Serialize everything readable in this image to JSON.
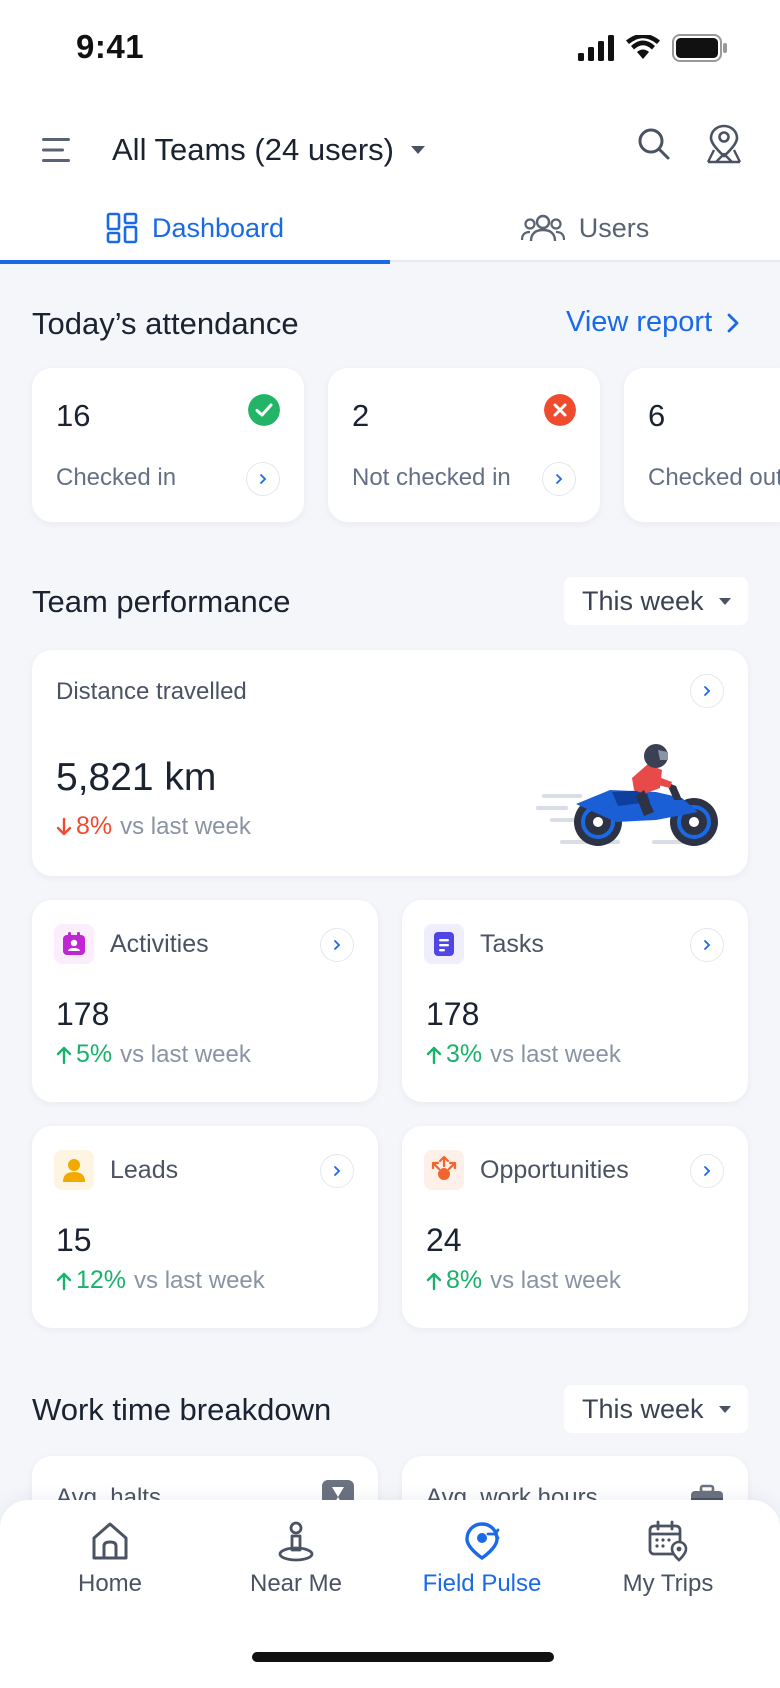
{
  "status_bar": {
    "time": "9:41"
  },
  "header": {
    "team_title": "All Teams (24 users)",
    "tabs": [
      {
        "label": "Dashboard",
        "icon": "dashboard-grid-icon",
        "active": true
      },
      {
        "label": "Users",
        "icon": "users-icon",
        "active": false
      }
    ]
  },
  "attendance": {
    "title": "Today’s attendance",
    "link": "View report",
    "cards": [
      {
        "value": "16",
        "label": "Checked in",
        "status": "check-circle-icon",
        "color": "#22b567"
      },
      {
        "value": "2",
        "label": "Not checked in",
        "status": "x-circle-icon",
        "color": "#ef4b2f"
      },
      {
        "value": "6",
        "label": "Checked out"
      }
    ]
  },
  "performance": {
    "title": "Team performance",
    "period": "This week",
    "distance": {
      "label": "Distance travelled",
      "value": "5,821 km",
      "change": "8%",
      "direction": "down",
      "compare": "vs last week"
    },
    "metrics": [
      {
        "label": "Activities",
        "value": "178",
        "change": "5%",
        "direction": "up",
        "compare": "vs last week",
        "icon": "activities-icon",
        "icon_color": "#c026d3"
      },
      {
        "label": "Tasks",
        "value": "178",
        "change": "3%",
        "direction": "up",
        "compare": "vs last week",
        "icon": "tasks-icon",
        "icon_color": "#4f46e5"
      },
      {
        "label": "Leads",
        "value": "15",
        "change": "12%",
        "direction": "up",
        "compare": "vs last week",
        "icon": "lead-person-icon",
        "icon_color": "#f2a900"
      },
      {
        "label": "Opportunities",
        "value": "24",
        "change": "8%",
        "direction": "up",
        "compare": "vs last week",
        "icon": "opportunities-icon",
        "icon_color": "#f0652f"
      }
    ]
  },
  "work_time": {
    "title": "Work time breakdown",
    "period": "This week",
    "cards": [
      {
        "label": "Avg. halts",
        "icon": "hourglass-icon"
      },
      {
        "label": "Avg. work hours",
        "icon": "briefcase-icon"
      }
    ]
  },
  "bottom_nav": {
    "items": [
      {
        "label": "Home",
        "icon": "home-icon",
        "active": false
      },
      {
        "label": "Near Me",
        "icon": "near-me-icon",
        "active": false
      },
      {
        "label": "Field Pulse",
        "icon": "field-pulse-icon",
        "active": true
      },
      {
        "label": "My Trips",
        "icon": "my-trips-icon",
        "active": false
      }
    ]
  },
  "colors": {
    "accent": "#1a6ae8",
    "up": "#18b26b",
    "down": "#ef4b2f"
  }
}
